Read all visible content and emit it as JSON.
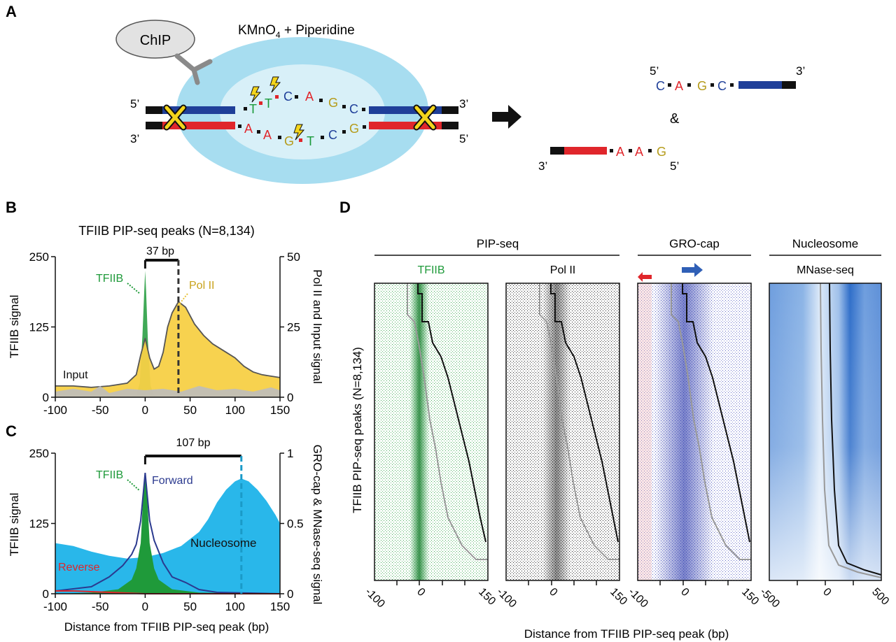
{
  "panel_labels": {
    "a": "A",
    "b": "B",
    "c": "C",
    "d": "D"
  },
  "panel_a": {
    "chip": "ChIP",
    "reagent_main": "KMnO",
    "reagent_sub": "4",
    "reagent_tail": " + Piperidine",
    "five_prime": "5’",
    "three_prime": "3’",
    "amp": "&",
    "top_bases": [
      "T",
      "T",
      "C",
      "A",
      "G",
      "C"
    ],
    "bottom_bases": [
      "A",
      "A",
      "G",
      "T",
      "C",
      "G"
    ],
    "product_top_bases": [
      "C",
      "A",
      "G",
      "C"
    ],
    "product_bottom_bases": [
      "A",
      "A",
      "G"
    ],
    "colors": {
      "T": "#1a9a3a",
      "A": "#e0262b",
      "G": "#b59b1a",
      "C": "#1f3f99",
      "blue_strand": "#1f3f99",
      "red_strand": "#e0262b",
      "outer_oval": "#a7ddf0",
      "inner_oval": "#d8f0f8"
    }
  },
  "panel_b": {
    "title": "TFIIB PIP-seq peaks (N=8,134)",
    "ylabel_left": "TFIIB signal",
    "ylabel_right": "Pol II and Input signal",
    "bracket_label": "37 bp",
    "label_tfiib": "TFIIB",
    "label_pol2": "Pol II",
    "label_input": "Input"
  },
  "panel_c": {
    "ylabel_left": "TFIIB signal",
    "ylabel_right": "GRO-cap & MNase-seq signal",
    "xlabel": "Distance from TFIIB PIP-seq peak (bp)",
    "bracket_label": "107 bp",
    "label_tfiib": "TFIIB",
    "label_forward": "Forward",
    "label_reverse": "Reverse",
    "label_nucleosome": "Nucleosome"
  },
  "panel_d": {
    "group_pipseq": "PIP-seq",
    "group_grocap": "GRO-cap",
    "group_nucleosome": "Nucleosome",
    "heat_tfiib": "TFIIB",
    "heat_pol2": "Pol II",
    "heat_mnase": "MNase-seq",
    "ylabel": "TFIIB PIP-seq peaks (N=8,134)",
    "xlabel": "Distance from TFIIB PIP-seq peak (bp)",
    "ticks_150": [
      "-100",
      "0",
      "150"
    ],
    "ticks_500": [
      "-500",
      "0",
      "500"
    ]
  },
  "chart_data": [
    {
      "type": "area",
      "panel": "B",
      "title": "TFIIB PIP-seq peaks (N=8,134)",
      "xlabel": "",
      "ylabel": "TFIIB signal",
      "y2label": "Pol II and Input signal",
      "xlim": [
        -100,
        150
      ],
      "ylim": [
        0,
        250
      ],
      "y2lim": [
        0,
        50
      ],
      "xticks": [
        "-100",
        "-50",
        "0",
        "50",
        "100",
        "150"
      ],
      "yticks": [
        "0",
        "125",
        "250"
      ],
      "y2ticks": [
        "0",
        "25",
        "50"
      ],
      "annotation": "37 bp",
      "series": [
        {
          "name": "TFIIB",
          "axis": "left",
          "color": "#1f9a3a",
          "x": [
            -100,
            -20,
            -10,
            -6,
            -3,
            -1,
            0,
            1,
            3,
            6,
            10,
            20,
            150
          ],
          "y": [
            0,
            0,
            3,
            25,
            110,
            190,
            225,
            190,
            100,
            20,
            3,
            0,
            0
          ]
        },
        {
          "name": "Pol II",
          "axis": "right",
          "color": "#f7d046",
          "x": [
            -100,
            -80,
            -60,
            -40,
            -20,
            -10,
            -5,
            0,
            5,
            10,
            15,
            20,
            25,
            30,
            37,
            45,
            55,
            65,
            75,
            90,
            100,
            110,
            120,
            130,
            140,
            150
          ],
          "y": [
            4,
            4,
            3.5,
            4,
            5,
            8,
            15,
            21,
            14,
            10,
            11,
            16,
            25,
            30,
            34,
            32,
            26,
            22,
            19,
            16,
            14,
            11,
            9,
            8,
            7.5,
            7
          ]
        },
        {
          "name": "Input",
          "axis": "right",
          "color": "#bdbdbd",
          "x": [
            -100,
            -80,
            -60,
            -50,
            -40,
            -20,
            0,
            20,
            40,
            60,
            80,
            100,
            120,
            140,
            150
          ],
          "y": [
            2,
            3,
            2,
            4,
            1.5,
            3,
            2.5,
            3,
            2,
            4,
            2.5,
            3,
            2,
            3.5,
            2.5
          ]
        }
      ]
    },
    {
      "type": "area",
      "panel": "C",
      "xlabel": "Distance from TFIIB PIP-seq peak (bp)",
      "ylabel": "TFIIB signal",
      "y2label": "GRO-cap & MNase-seq signal",
      "xlim": [
        -100,
        150
      ],
      "ylim": [
        0,
        250
      ],
      "y2lim": [
        0,
        1
      ],
      "xticks": [
        "-100",
        "-50",
        "0",
        "50",
        "100",
        "150"
      ],
      "yticks": [
        "0",
        "125",
        "250"
      ],
      "y2ticks": [
        "0",
        "0.5",
        "1"
      ],
      "annotation": "107 bp",
      "series": [
        {
          "name": "Nucleosome",
          "axis": "right",
          "color": "#29b7ea",
          "x": [
            -100,
            -80,
            -60,
            -40,
            -20,
            0,
            20,
            40,
            60,
            70,
            80,
            90,
            100,
            107,
            115,
            125,
            135,
            145,
            150
          ],
          "y": [
            0.36,
            0.34,
            0.3,
            0.27,
            0.25,
            0.26,
            0.29,
            0.34,
            0.44,
            0.53,
            0.65,
            0.74,
            0.8,
            0.82,
            0.8,
            0.74,
            0.66,
            0.56,
            0.5
          ]
        },
        {
          "name": "TFIIB",
          "axis": "left",
          "color": "#1f9a3a",
          "x": [
            -100,
            -60,
            -30,
            -15,
            -10,
            -5,
            -2,
            0,
            2,
            5,
            10,
            15,
            30,
            60,
            150
          ],
          "y": [
            0,
            2,
            8,
            25,
            45,
            90,
            180,
            210,
            180,
            90,
            45,
            25,
            8,
            2,
            0
          ]
        },
        {
          "name": "Forward",
          "axis": "right",
          "color": "#2b3a8f",
          "x": [
            -100,
            -60,
            -40,
            -25,
            -15,
            -10,
            -5,
            -2,
            0,
            2,
            5,
            10,
            15,
            20,
            30,
            45,
            60,
            80,
            150
          ],
          "y": [
            0.02,
            0.05,
            0.12,
            0.2,
            0.28,
            0.35,
            0.52,
            0.72,
            0.86,
            0.72,
            0.52,
            0.38,
            0.3,
            0.22,
            0.12,
            0.08,
            0.03,
            0.01,
            0
          ]
        },
        {
          "name": "Reverse",
          "axis": "right",
          "color": "#e0262b",
          "x": [
            -100,
            -80,
            -60,
            -40,
            -20,
            0,
            50,
            150
          ],
          "y": [
            0.02,
            0.02,
            0.015,
            0.01,
            0.005,
            0,
            0,
            0
          ]
        }
      ]
    },
    {
      "type": "heatmap",
      "panel": "D",
      "ylabel": "TFIIB PIP-seq peaks (N=8,134)",
      "xlabel": "Distance from TFIIB PIP-seq peak (bp)",
      "heatmaps": [
        {
          "name": "TFIIB",
          "group": "PIP-seq",
          "xlim": [
            -100,
            150
          ],
          "xticks": [
            "-100",
            "0",
            "150"
          ],
          "color": "#1f9a3a"
        },
        {
          "name": "Pol II",
          "group": "PIP-seq",
          "xlim": [
            -100,
            150
          ],
          "xticks": [
            "-100",
            "0",
            "150"
          ],
          "color": "#000000"
        },
        {
          "name": "",
          "group": "GRO-cap",
          "xlim": [
            -100,
            150
          ],
          "xticks": [
            "-100",
            "0",
            "150"
          ],
          "color": "#3b43b0"
        },
        {
          "name": "MNase-seq",
          "group": "Nucleosome",
          "xlim": [
            -500,
            500
          ],
          "xticks": [
            "-500",
            "0",
            "500"
          ],
          "color": "#2f6ec9"
        }
      ]
    }
  ]
}
